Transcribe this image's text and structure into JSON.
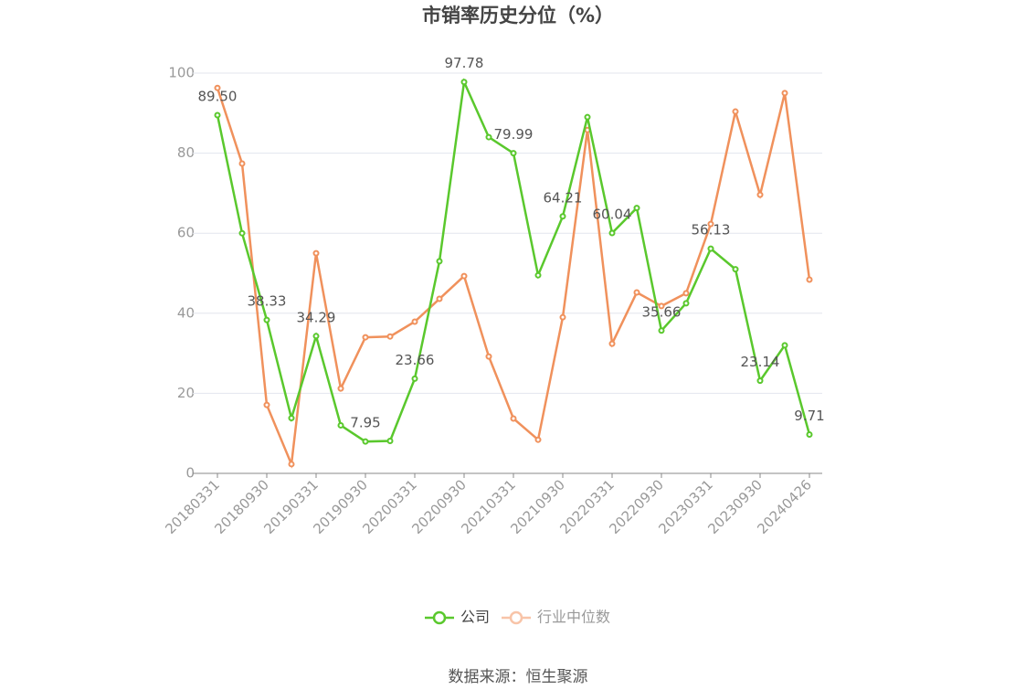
{
  "chart_data": {
    "type": "line",
    "title": "市销率历史分位（%）",
    "categories": [
      "20180331",
      null,
      "20180930",
      null,
      "20190331",
      null,
      "20190930",
      null,
      "20200331",
      null,
      "20200930",
      null,
      "20210331",
      null,
      "20210930",
      null,
      "20220331",
      null,
      "20220930",
      null,
      "20230331",
      null,
      "20230930",
      null,
      "20240426"
    ],
    "series": [
      {
        "name": "公司",
        "color": "#5ac82d",
        "values": [
          89.5,
          60,
          38.33,
          13.8,
          34.29,
          12,
          7.95,
          8.1,
          23.66,
          53,
          97.78,
          84,
          79.99,
          49.5,
          64.21,
          89,
          60.04,
          66.3,
          35.66,
          42.5,
          56.13,
          51,
          23.14,
          32,
          9.71
        ],
        "value_labels": [
          "89.50",
          null,
          "38.33",
          null,
          "34.29",
          null,
          "7.95",
          null,
          "23.66",
          null,
          "97.78",
          null,
          "79.99",
          null,
          "64.21",
          null,
          "60.04",
          null,
          "35.66",
          null,
          "56.13",
          null,
          "23.14",
          null,
          "9.71"
        ]
      },
      {
        "name": "行业中位数",
        "color": "#f0915c",
        "values": [
          96.3,
          77.4,
          17.1,
          2.3,
          55.0,
          21.2,
          34.0,
          34.2,
          37.9,
          43.6,
          49.3,
          29.2,
          13.7,
          8.4,
          39.0,
          85.8,
          32.4,
          45.2,
          41.8,
          45.0,
          62.3,
          90.4,
          69.6,
          95.0,
          48.4
        ]
      }
    ],
    "ylim": [
      0,
      100
    ],
    "yticks": [
      0,
      20,
      40,
      60,
      80,
      100
    ],
    "grid": true,
    "source": "数据来源：恒生聚源"
  }
}
